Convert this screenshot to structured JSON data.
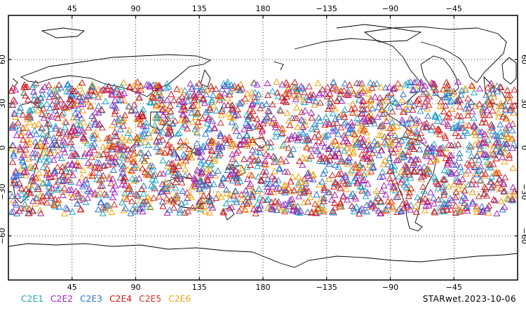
{
  "map": {
    "projection": "equirectangular",
    "lon_range": [
      0,
      360
    ],
    "lat_range": [
      -90,
      90
    ],
    "grid": "dotted",
    "top_tick_labels": [
      "45",
      "90",
      "135",
      "180",
      "−135",
      "−90",
      "−45"
    ],
    "bottom_tick_labels": [
      "45",
      "90",
      "135",
      "180",
      "−135",
      "−90",
      "−45"
    ],
    "left_tick_labels": [
      "60",
      "30",
      "0",
      "−30",
      "−60"
    ],
    "right_tick_labels": [
      "60",
      "30",
      "0",
      "−30",
      "−60"
    ],
    "observation_band_lat": [
      -45,
      45
    ],
    "marker_shape": "triangle-outline"
  },
  "legend": [
    {
      "label": "C2E1",
      "color": "#1aa3c4"
    },
    {
      "label": "C2E2",
      "color": "#a020c0"
    },
    {
      "label": "C2E3",
      "color": "#2a6fd6"
    },
    {
      "label": "C2E4",
      "color": "#cc1111"
    },
    {
      "label": "C2E5",
      "color": "#d42a2a"
    },
    {
      "label": "C2E6",
      "color": "#f2a20a"
    }
  ],
  "stamp": "STARwet.2023-10-06"
}
